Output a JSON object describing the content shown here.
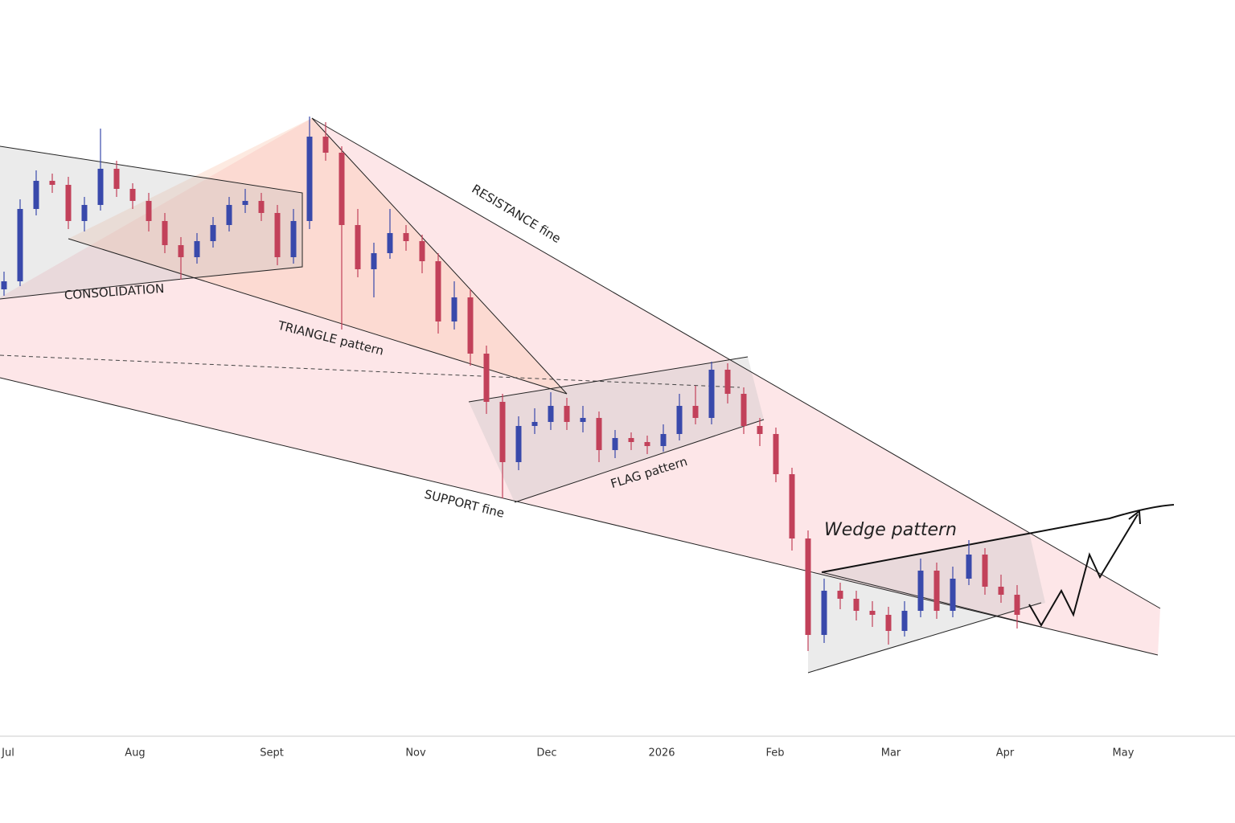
{
  "chart_data": {
    "type": "candlestick",
    "ylim": [
      0,
      900
    ],
    "up_color": "#3949ab",
    "down_color": "#c2415a",
    "xticks": [
      "Jul",
      "Aug",
      "Sept",
      "Nov",
      "Dec",
      "2026",
      "Feb",
      "Mar",
      "Apr",
      "May"
    ],
    "candles": [
      [
        540,
        562,
        532,
        550
      ],
      [
        550,
        652,
        544,
        640
      ],
      [
        640,
        688,
        632,
        675
      ],
      [
        675,
        684,
        660,
        670
      ],
      [
        670,
        680,
        615,
        625
      ],
      [
        625,
        655,
        612,
        645
      ],
      [
        645,
        740,
        638,
        690
      ],
      [
        690,
        700,
        655,
        665
      ],
      [
        665,
        672,
        640,
        650
      ],
      [
        650,
        660,
        612,
        625
      ],
      [
        625,
        635,
        585,
        595
      ],
      [
        595,
        605,
        552,
        580
      ],
      [
        580,
        610,
        572,
        600
      ],
      [
        600,
        630,
        592,
        620
      ],
      [
        620,
        655,
        612,
        645
      ],
      [
        645,
        665,
        635,
        650
      ],
      [
        650,
        660,
        625,
        635
      ],
      [
        635,
        645,
        570,
        580
      ],
      [
        580,
        640,
        572,
        625
      ],
      [
        625,
        755,
        615,
        730
      ],
      [
        730,
        748,
        700,
        710
      ],
      [
        710,
        718,
        490,
        620
      ],
      [
        620,
        640,
        555,
        565
      ],
      [
        565,
        598,
        530,
        585
      ],
      [
        585,
        640,
        578,
        610
      ],
      [
        610,
        620,
        588,
        600
      ],
      [
        600,
        608,
        560,
        575
      ],
      [
        575,
        585,
        485,
        500
      ],
      [
        500,
        550,
        490,
        530
      ],
      [
        530,
        540,
        445,
        460
      ],
      [
        460,
        470,
        385,
        400
      ],
      [
        400,
        410,
        280,
        325
      ],
      [
        325,
        382,
        315,
        370
      ],
      [
        370,
        392,
        360,
        375
      ],
      [
        375,
        412,
        365,
        395
      ],
      [
        395,
        405,
        365,
        375
      ],
      [
        375,
        395,
        362,
        380
      ],
      [
        380,
        388,
        325,
        340
      ],
      [
        340,
        365,
        330,
        355
      ],
      [
        355,
        362,
        340,
        350
      ],
      [
        350,
        358,
        335,
        345
      ],
      [
        345,
        372,
        338,
        360
      ],
      [
        360,
        410,
        352,
        395
      ],
      [
        395,
        420,
        372,
        380
      ],
      [
        380,
        450,
        372,
        440
      ],
      [
        440,
        448,
        398,
        410
      ],
      [
        410,
        418,
        360,
        370
      ],
      [
        370,
        380,
        345,
        360
      ],
      [
        360,
        368,
        300,
        310
      ],
      [
        310,
        318,
        215,
        230
      ],
      [
        230,
        240,
        90,
        110
      ],
      [
        110,
        180,
        100,
        165
      ],
      [
        165,
        175,
        142,
        155
      ],
      [
        155,
        165,
        128,
        140
      ],
      [
        140,
        152,
        120,
        135
      ],
      [
        135,
        145,
        98,
        115
      ],
      [
        115,
        152,
        108,
        140
      ],
      [
        140,
        205,
        132,
        190
      ],
      [
        190,
        200,
        130,
        140
      ],
      [
        140,
        195,
        132,
        180
      ],
      [
        180,
        228,
        172,
        210
      ],
      [
        210,
        218,
        160,
        170
      ],
      [
        170,
        185,
        150,
        160
      ],
      [
        160,
        172,
        118,
        135
      ]
    ],
    "annotations": {
      "consolidation": "CONSOLIDATION",
      "triangle": "TRIANGLE pattern",
      "resistance": "RESISTANCE fine",
      "support": "SUPPORT fine",
      "flag": "FLAG pattern",
      "wedge": "Wedge pattern"
    }
  }
}
